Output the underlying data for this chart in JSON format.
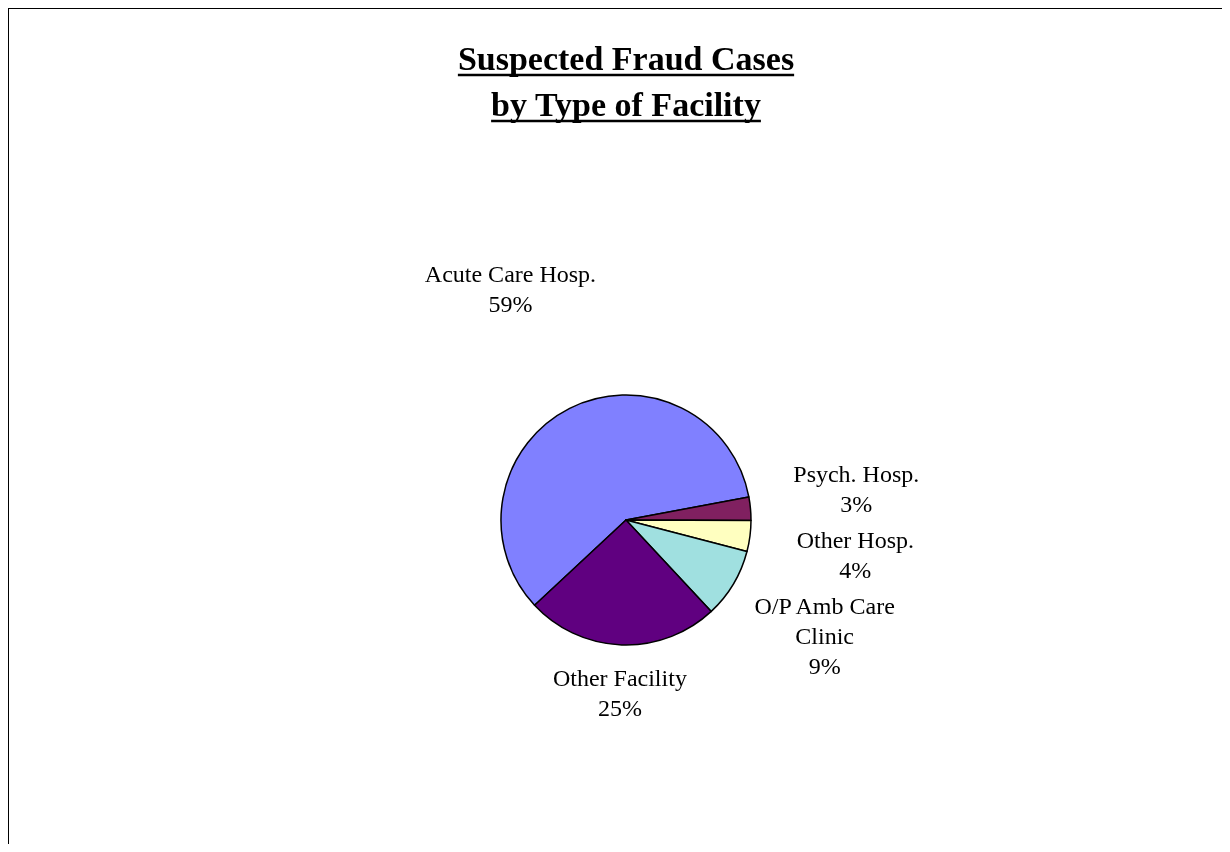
{
  "chart_data": {
    "type": "pie",
    "title": "Suspected Fraud Cases\nby Type of Facility",
    "categories": [
      "Acute Care Hosp.",
      "Psych. Hosp.",
      "Other Hosp.",
      "O/P Amb Care Clinic",
      "Other Facility"
    ],
    "values": [
      59,
      3,
      4,
      9,
      25
    ],
    "value_labels": [
      "59%",
      "3%",
      "4%",
      "9%",
      "25%"
    ],
    "colors": [
      "#8080ff",
      "#802060",
      "#ffffc0",
      "#a0e0e0",
      "#600080"
    ]
  }
}
